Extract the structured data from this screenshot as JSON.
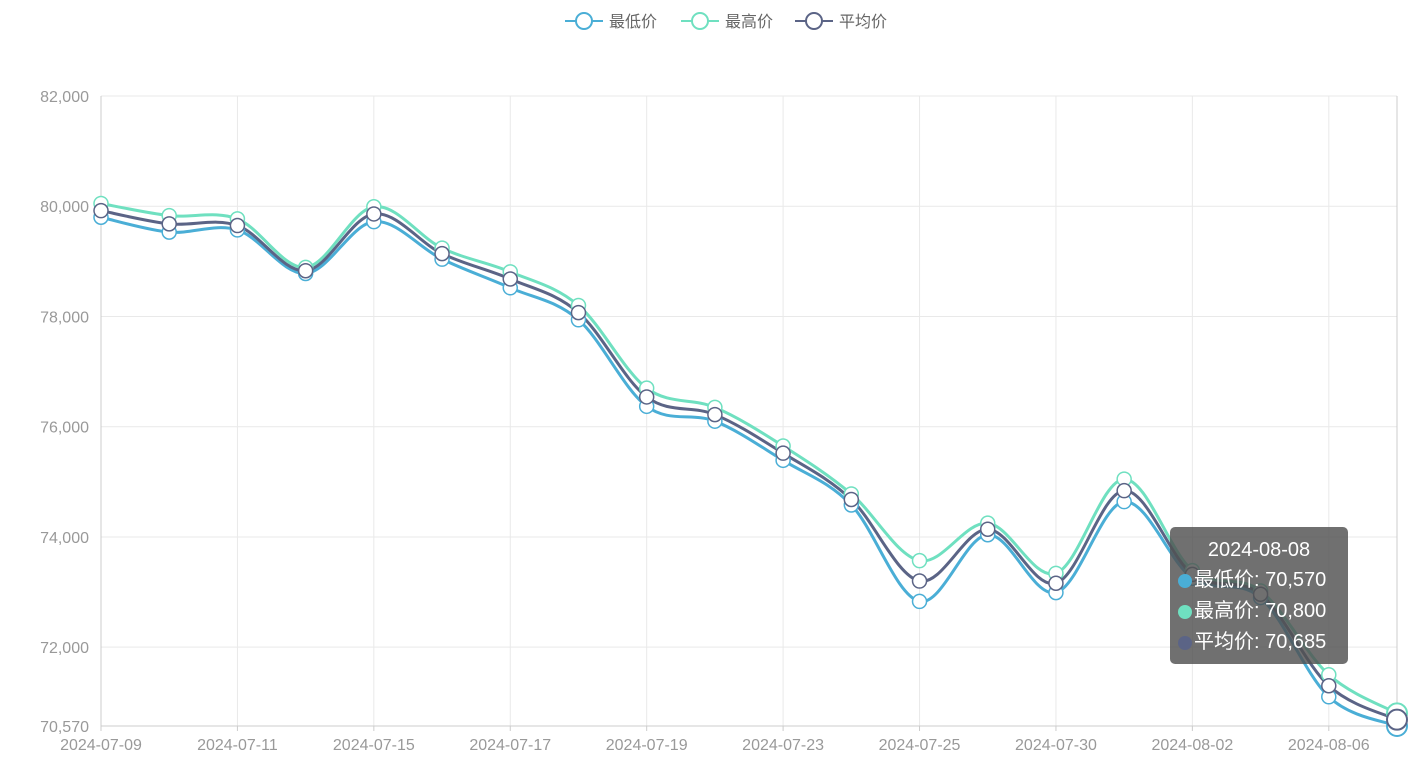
{
  "chart_data": {
    "type": "line",
    "smooth": true,
    "x": [
      "2024-07-09",
      "2024-07-10",
      "2024-07-11",
      "2024-07-12",
      "2024-07-15",
      "2024-07-16",
      "2024-07-17",
      "2024-07-18",
      "2024-07-19",
      "2024-07-22",
      "2024-07-23",
      "2024-07-24",
      "2024-07-25",
      "2024-07-26",
      "2024-07-30",
      "2024-07-31",
      "2024-08-02",
      "2024-08-05",
      "2024-08-06",
      "2024-08-08"
    ],
    "x_tick_labels": [
      "2024-07-09",
      "2024-07-11",
      "2024-07-15",
      "2024-07-17",
      "2024-07-19",
      "2024-07-23",
      "2024-07-25",
      "2024-07-30",
      "2024-08-02",
      "2024-08-06"
    ],
    "series": [
      {
        "name": "最低价",
        "color": "#4aaed6",
        "values": [
          79800,
          79530,
          79570,
          78780,
          79720,
          79040,
          78520,
          77940,
          76370,
          76100,
          75390,
          74580,
          72830,
          74040,
          72990,
          74640,
          73250,
          72900,
          71100,
          70570
        ]
      },
      {
        "name": "最高价",
        "color": "#6fe0c0",
        "values": [
          80050,
          79830,
          79770,
          78890,
          79990,
          79240,
          78810,
          78200,
          76700,
          76350,
          75650,
          74780,
          73570,
          74250,
          73340,
          75050,
          73390,
          73020,
          71500,
          70800
        ]
      },
      {
        "name": "平均价",
        "color": "#5b6486",
        "values": [
          79920,
          79680,
          79650,
          78830,
          79860,
          79140,
          78680,
          78070,
          76540,
          76220,
          75520,
          74680,
          73200,
          74140,
          73160,
          74840,
          73320,
          72960,
          71300,
          70685
        ]
      }
    ],
    "y_ticks": [
      70570,
      72000,
      74000,
      76000,
      78000,
      80000,
      82000
    ],
    "y_tick_labels": [
      "70,570",
      "72,000",
      "74,000",
      "76,000",
      "78,000",
      "80,000",
      "82,000"
    ],
    "ylim": [
      70570,
      82000
    ],
    "grid": true,
    "legend_position": "top-center",
    "tooltip": {
      "title": "2024-08-08",
      "rows": [
        {
          "label": "最低价: 70,570",
          "color": "#4aaed6"
        },
        {
          "label": "最高价: 70,800",
          "color": "#6fe0c0"
        },
        {
          "label": "平均价: 70,685",
          "color": "#5b6486"
        }
      ]
    }
  }
}
